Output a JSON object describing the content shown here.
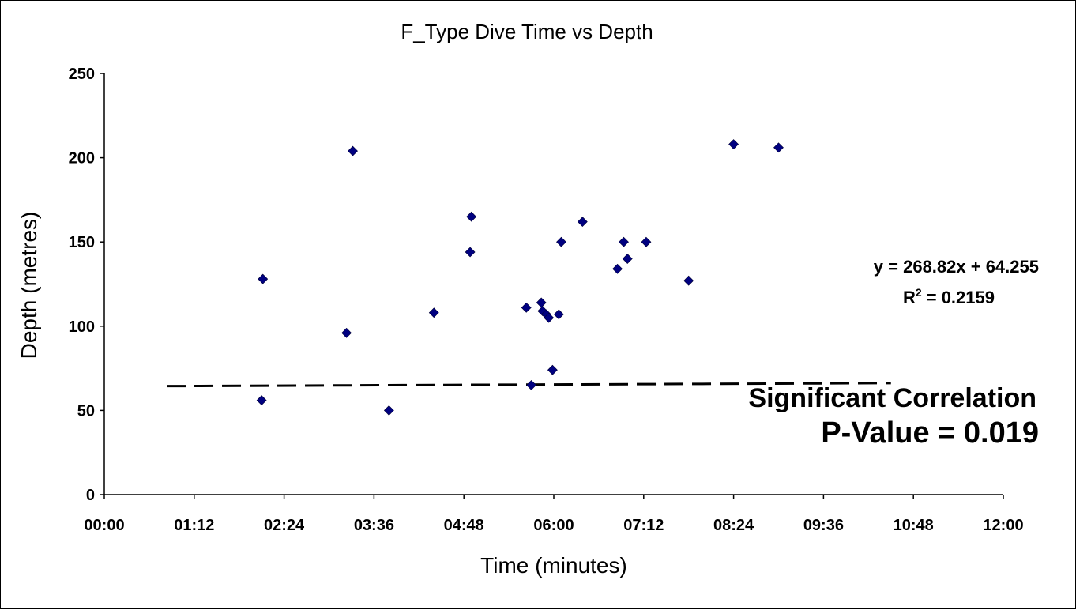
{
  "chart_data": {
    "type": "scatter",
    "title": "F_Type Dive Time vs Depth",
    "xlabel": "Time (minutes)",
    "ylabel": "Depth (metres)",
    "xlim": [
      "00:00",
      "12:00"
    ],
    "ylim": [
      0,
      250
    ],
    "x_ticks": [
      "00:00",
      "01:12",
      "02:24",
      "03:36",
      "04:48",
      "06:00",
      "07:12",
      "08:24",
      "09:36",
      "10:48",
      "12:00"
    ],
    "y_ticks": [
      0,
      50,
      100,
      150,
      200,
      250
    ],
    "grid": false,
    "legend": "none",
    "marker_color": "#000080",
    "points": [
      {
        "x": "02:06",
        "y": 56
      },
      {
        "x": "02:07",
        "y": 128
      },
      {
        "x": "03:14",
        "y": 96
      },
      {
        "x": "03:19",
        "y": 204
      },
      {
        "x": "03:48",
        "y": 50
      },
      {
        "x": "04:24",
        "y": 108
      },
      {
        "x": "04:53",
        "y": 144
      },
      {
        "x": "04:54",
        "y": 165
      },
      {
        "x": "05:38",
        "y": 111
      },
      {
        "x": "05:42",
        "y": 65
      },
      {
        "x": "05:50",
        "y": 114
      },
      {
        "x": "05:51",
        "y": 109
      },
      {
        "x": "05:54",
        "y": 107
      },
      {
        "x": "05:56",
        "y": 105
      },
      {
        "x": "05:59",
        "y": 74
      },
      {
        "x": "06:04",
        "y": 107
      },
      {
        "x": "06:06",
        "y": 150
      },
      {
        "x": "06:23",
        "y": 162
      },
      {
        "x": "06:51",
        "y": 134
      },
      {
        "x": "06:56",
        "y": 150
      },
      {
        "x": "06:59",
        "y": 140
      },
      {
        "x": "07:14",
        "y": 150
      },
      {
        "x": "07:48",
        "y": 127
      },
      {
        "x": "08:24",
        "y": 208
      },
      {
        "x": "09:00",
        "y": 206
      }
    ],
    "trendline": {
      "style": "dashed",
      "slope": 268.82,
      "intercept": 64.255,
      "x_start": "00:50",
      "x_end": "10:30"
    },
    "annotations": {
      "equation": "y = 268.82x + 64.255",
      "r2_label": "R",
      "r2_exp": "2",
      "r2_value": " = 0.2159",
      "significance": "Significant Correlation",
      "pvalue": "P-Value = 0.019"
    }
  }
}
